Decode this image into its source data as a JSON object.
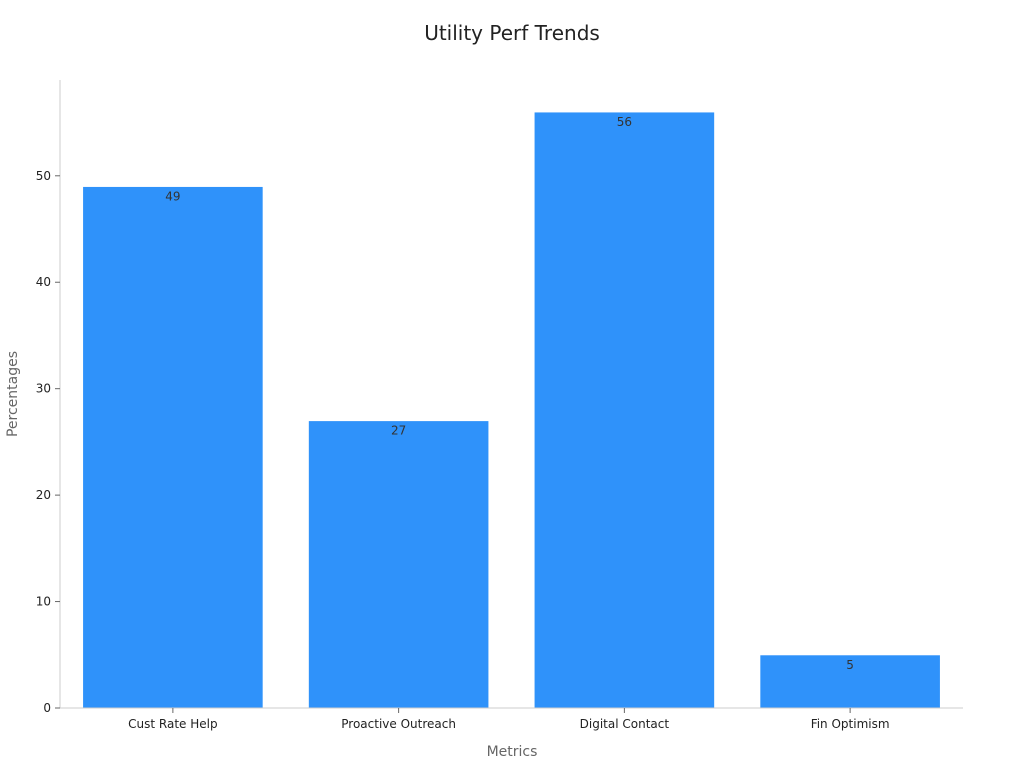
{
  "chart_data": {
    "type": "bar",
    "title": "Utility Perf Trends",
    "xlabel": "Metrics",
    "ylabel": "Percentages",
    "categories": [
      "Cust Rate Help",
      "Proactive Outreach",
      "Digital Contact",
      "Fin Optimism"
    ],
    "values": [
      49,
      27,
      56,
      5
    ],
    "data_labels": [
      "49",
      "27",
      "56",
      "5"
    ],
    "yticks": [
      0,
      10,
      20,
      30,
      40,
      50
    ],
    "ytick_labels": [
      "0",
      "10",
      "20",
      "30",
      "40",
      "50"
    ],
    "ylim": [
      0,
      59
    ],
    "grid": false,
    "legend": "none",
    "bar_color": "#2f92fa"
  }
}
